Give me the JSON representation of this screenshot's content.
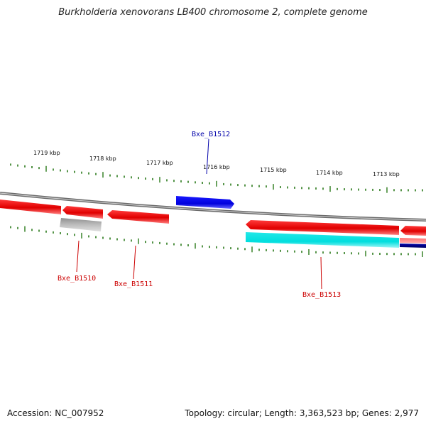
{
  "title": "Burkholderia xenovorans LB400 chromosome 2, complete genome",
  "footer": {
    "accession": "Accession: NC_007952",
    "summary": "Topology: circular; Length: 3,363,523 bp; Genes: 2,977"
  },
  "map": {
    "ticks": [
      "1719 kbp",
      "1718 kbp",
      "1717 kbp",
      "1716 kbp",
      "1715 kbp",
      "1714 kbp",
      "1713 kbp"
    ],
    "colors": {
      "backbone": "#888888",
      "tick": "#2a7a1a",
      "gene_red": "#ff0000",
      "gene_blue": "#0000ee",
      "gene_cyan": "#00eeee",
      "gene_gray": "#aaaaaa",
      "label_red": "#cc0000",
      "label_blue": "#0000aa"
    },
    "genes": [
      {
        "id": "Bxe_B1510",
        "color": "#cc0000"
      },
      {
        "id": "Bxe_B1511",
        "color": "#cc0000"
      },
      {
        "id": "Bxe_B1512",
        "color": "#0000aa"
      },
      {
        "id": "Bxe_B1513",
        "color": "#cc0000"
      }
    ]
  }
}
